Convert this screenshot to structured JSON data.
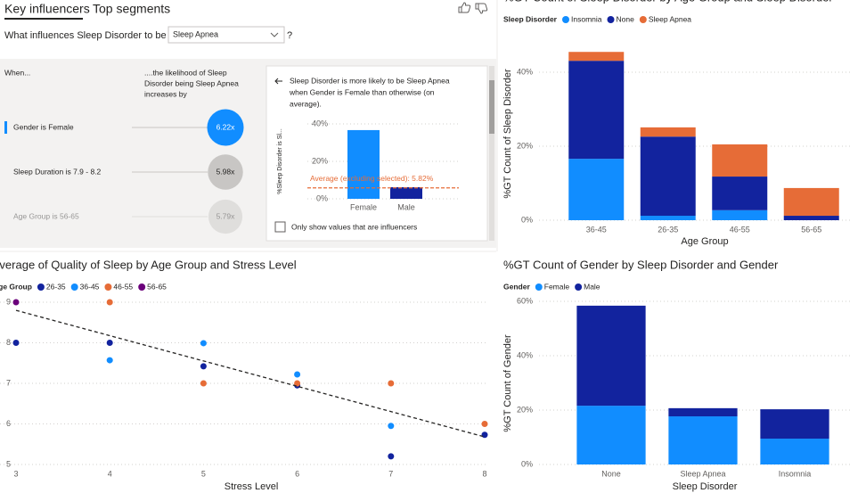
{
  "key_influencers": {
    "tabs": [
      "Key influencers",
      "Top segments"
    ],
    "question": "What influences Sleep Disorder to be",
    "selected_value": "Sleep Apnea",
    "help": "?",
    "col_when": "When...",
    "col_likelihood": [
      "....the likelihood of Sleep",
      "Disorder being Sleep Apnea",
      "increases by"
    ],
    "influencers": [
      {
        "label": "Gender is Female",
        "value": 6.22,
        "value_label": "6.22x"
      },
      {
        "label": "Sleep Duration is 7.9 - 8.2",
        "value": 5.98,
        "value_label": "5.98x"
      },
      {
        "label": "Age Group is 56-65",
        "value": 5.79,
        "value_label": "5.79x"
      }
    ],
    "explanation": [
      "Sleep Disorder is more likely to be Sleep Apnea",
      "when Gender is Female than otherwise (on",
      "average)."
    ],
    "checkbox_label": "Only show values that are influencers"
  },
  "chart_data": [
    {
      "type": "stacked_bar",
      "title": "%GT Count of Sleep Disorder by Age Group and Sleep Disorder",
      "legend_title": "Sleep Disorder",
      "x_label": "Age Group",
      "y_label": "%GT Count of Sleep Disorder",
      "categories": [
        "36-45",
        "26-35",
        "46-55",
        "56-65"
      ],
      "series": [
        {
          "name": "Insomnia",
          "color": "#118DFF",
          "values": [
            16.6,
            1.2,
            2.7,
            0
          ]
        },
        {
          "name": "None",
          "color": "#12239E",
          "values": [
            26.5,
            21.4,
            9.1,
            1.2
          ]
        },
        {
          "name": "Sleep Apnea",
          "color": "#E66C37",
          "values": [
            2.4,
            2.5,
            8.7,
            7.5
          ]
        }
      ],
      "ylim": [
        0,
        47
      ],
      "yticks": [
        {
          "value": 0,
          "label": "0%"
        },
        {
          "value": 20,
          "label": "20%"
        },
        {
          "value": 40,
          "label": "40%"
        }
      ],
      "grid": true
    },
    {
      "type": "scatter",
      "title": "Average of Quality of Sleep by Age Group and Stress Level",
      "legend_title": "Age Group",
      "x_label": "Stress Level",
      "series": [
        {
          "name": "26-35",
          "color": "#12239E",
          "x": [
            3,
            4,
            5,
            6,
            7,
            8
          ],
          "values": [
            8,
            8,
            7.42,
            6.95,
            5.2,
            5.73
          ]
        },
        {
          "name": "36-45",
          "color": "#118DFF",
          "x": [
            4,
            5,
            6,
            7
          ],
          "values": [
            7.57,
            7.99,
            7.22,
            5.95
          ]
        },
        {
          "name": "46-55",
          "color": "#E66C37",
          "x": [
            4,
            5,
            6,
            7,
            8
          ],
          "values": [
            9,
            7,
            7,
            7,
            6
          ]
        },
        {
          "name": "56-65",
          "color": "#6B007B",
          "x": [
            3
          ],
          "values": [
            9
          ]
        }
      ],
      "trendline": {
        "x": [
          3,
          8
        ],
        "values": [
          8.8,
          5.68
        ]
      },
      "xlim": [
        3,
        8
      ],
      "xticks": [
        3,
        4,
        5,
        6,
        7,
        8
      ],
      "ylim": [
        5,
        9
      ],
      "yticks": [
        5,
        6,
        7,
        8,
        9
      ],
      "grid": true
    },
    {
      "type": "stacked_bar",
      "title": "%GT Count of Gender by Sleep Disorder and Gender",
      "legend_title": "Gender",
      "x_label": "Sleep Disorder",
      "y_label": "%GT Count of Gender",
      "categories": [
        "None",
        "Sleep Apnea",
        "Insomnia"
      ],
      "series": [
        {
          "name": "Female",
          "color": "#118DFF",
          "values": [
            21.6,
            17.7,
            9.5
          ]
        },
        {
          "name": "Male",
          "color": "#12239E",
          "values": [
            36.8,
            3.0,
            10.8
          ]
        }
      ],
      "ylim": [
        0,
        60
      ],
      "yticks": [
        {
          "value": 0,
          "label": "0%"
        },
        {
          "value": 20,
          "label": "20%"
        },
        {
          "value": 40,
          "label": "40%"
        },
        {
          "value": 60,
          "label": "60%"
        }
      ],
      "grid": true
    },
    {
      "type": "bar",
      "y_label": "%Sleep Disorder is Sl...",
      "categories": [
        "Female",
        "Male"
      ],
      "values": [
        36.7,
        6.2
      ],
      "colors": [
        "#118DFF",
        "#12239E"
      ],
      "reference": {
        "label": "Average (excluding selected): 5.82%",
        "value": 5.82,
        "color": "#E66C37"
      },
      "ylim": [
        0,
        40
      ],
      "yticks": [
        {
          "value": 0,
          "label": "0%"
        },
        {
          "value": 20,
          "label": "20%"
        },
        {
          "value": 40,
          "label": "40%"
        }
      ],
      "grid": true
    }
  ]
}
